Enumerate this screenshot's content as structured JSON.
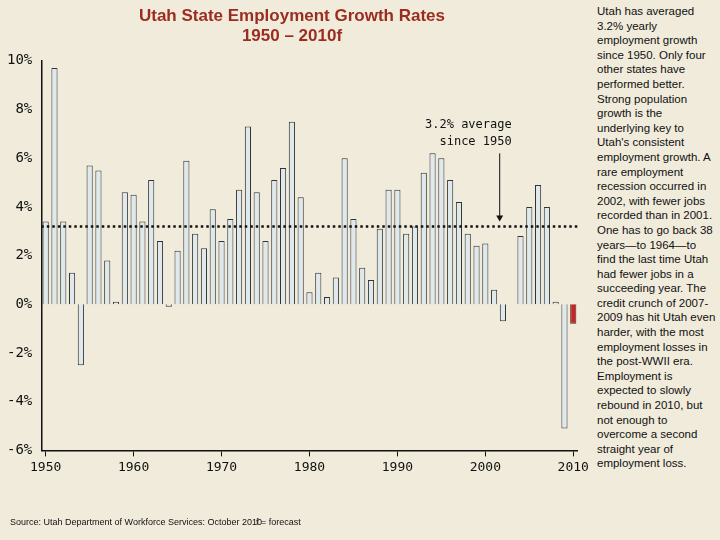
{
  "chart_data": {
    "type": "bar",
    "title": [
      "Utah State Employment Growth Rates",
      "1950 – 2010f"
    ],
    "categories": [
      "1950",
      null,
      null,
      null,
      null,
      null,
      null,
      null,
      null,
      null,
      "1960",
      null,
      null,
      null,
      null,
      null,
      null,
      null,
      null,
      null,
      "1970",
      null,
      null,
      null,
      null,
      null,
      null,
      null,
      null,
      null,
      "1980",
      null,
      null,
      null,
      null,
      null,
      null,
      null,
      null,
      null,
      "1990",
      null,
      null,
      null,
      null,
      null,
      null,
      null,
      null,
      null,
      "2000",
      null,
      null,
      null,
      null,
      null,
      null,
      null,
      null,
      null,
      "2010"
    ],
    "values": [
      3.4,
      9.7,
      3.4,
      1.3,
      -2.5,
      5.7,
      5.5,
      1.8,
      0.1,
      4.6,
      4.5,
      3.4,
      5.1,
      2.6,
      -0.1,
      2.2,
      5.9,
      2.9,
      2.3,
      3.9,
      2.6,
      3.5,
      4.7,
      7.3,
      4.6,
      2.6,
      5.1,
      5.6,
      7.5,
      4.4,
      0.5,
      1.3,
      0.3,
      1.1,
      6.0,
      3.5,
      1.5,
      1.0,
      3.1,
      4.7,
      4.7,
      2.9,
      3.2,
      5.4,
      6.2,
      6.0,
      5.1,
      4.2,
      2.9,
      2.4,
      2.5,
      0.6,
      -0.7,
      0.0,
      2.8,
      4.0,
      4.9,
      4.0,
      0.1,
      -5.1,
      -0.8
    ],
    "colors": [
      "#dfe9ec",
      "#dfe9ec",
      "#dfe9ec",
      "#dfe9ec",
      "#dfe9ec",
      "#dfe9ec",
      "#dfe9ec",
      "#dfe9ec",
      "#dfe9ec",
      "#dfe9ec",
      "#dfe9ec",
      "#dfe9ec",
      "#dfe9ec",
      "#dfe9ec",
      "#dfe9ec",
      "#dfe9ec",
      "#dfe9ec",
      "#dfe9ec",
      "#dfe9ec",
      "#dfe9ec",
      "#dfe9ec",
      "#dfe9ec",
      "#dfe9ec",
      "#dfe9ec",
      "#dfe9ec",
      "#dfe9ec",
      "#dfe9ec",
      "#dfe9ec",
      "#dfe9ec",
      "#dfe9ec",
      "#dfe9ec",
      "#dfe9ec",
      "#dfe9ec",
      "#dfe9ec",
      "#dfe9ec",
      "#dfe9ec",
      "#dfe9ec",
      "#dfe9ec",
      "#dfe9ec",
      "#dfe9ec",
      "#dfe9ec",
      "#dfe9ec",
      "#dfe9ec",
      "#dfe9ec",
      "#dfe9ec",
      "#dfe9ec",
      "#dfe9ec",
      "#dfe9ec",
      "#dfe9ec",
      "#dfe9ec",
      "#dfe9ec",
      "#dfe9ec",
      "#dfe9ec",
      "#dfe9ec",
      "#dfe9ec",
      "#dfe9ec",
      "#dfe9ec",
      "#dfe9ec",
      "#dfe9ec",
      "#dfe9ec",
      "#cc2222"
    ],
    "ylim": [
      -6,
      10
    ],
    "yticks": [
      {
        "value": -6,
        "label": "-6%"
      },
      {
        "value": -4,
        "label": "-4%"
      },
      {
        "value": -2,
        "label": "-2%"
      },
      {
        "value": 0,
        "label": "0%"
      },
      {
        "value": 2,
        "label": "2%"
      },
      {
        "value": 4,
        "label": "4%"
      },
      {
        "value": 6,
        "label": "6%"
      },
      {
        "value": 8,
        "label": "8%"
      },
      {
        "value": 10,
        "label": "10%"
      }
    ],
    "grid": false,
    "average_line": {
      "value": 3.2,
      "label": [
        "3.2% average",
        "since 1950"
      ]
    },
    "side_text": "Utah has averaged 3.2% yearly employment growth since 1950. Only four other states have performed better. Strong population growth is the underlying key to Utah's consistent employment growth. A rare employment recession occurred in 2002, with fewer jobs recorded than in 2001. One has to go back 38 years—to 1964—to find the last time Utah had fewer jobs in a succeeding year. The credit crunch of 2007-2009 has hit Utah even harder, with the most employment losses in the post-WWII era. Employment is expected to slowly rebound in 2010, but not enough to overcome a second straight year of employment loss.",
    "source": "Source: Utah Department of Workforce Services: October 2010",
    "note": "f = forecast"
  }
}
